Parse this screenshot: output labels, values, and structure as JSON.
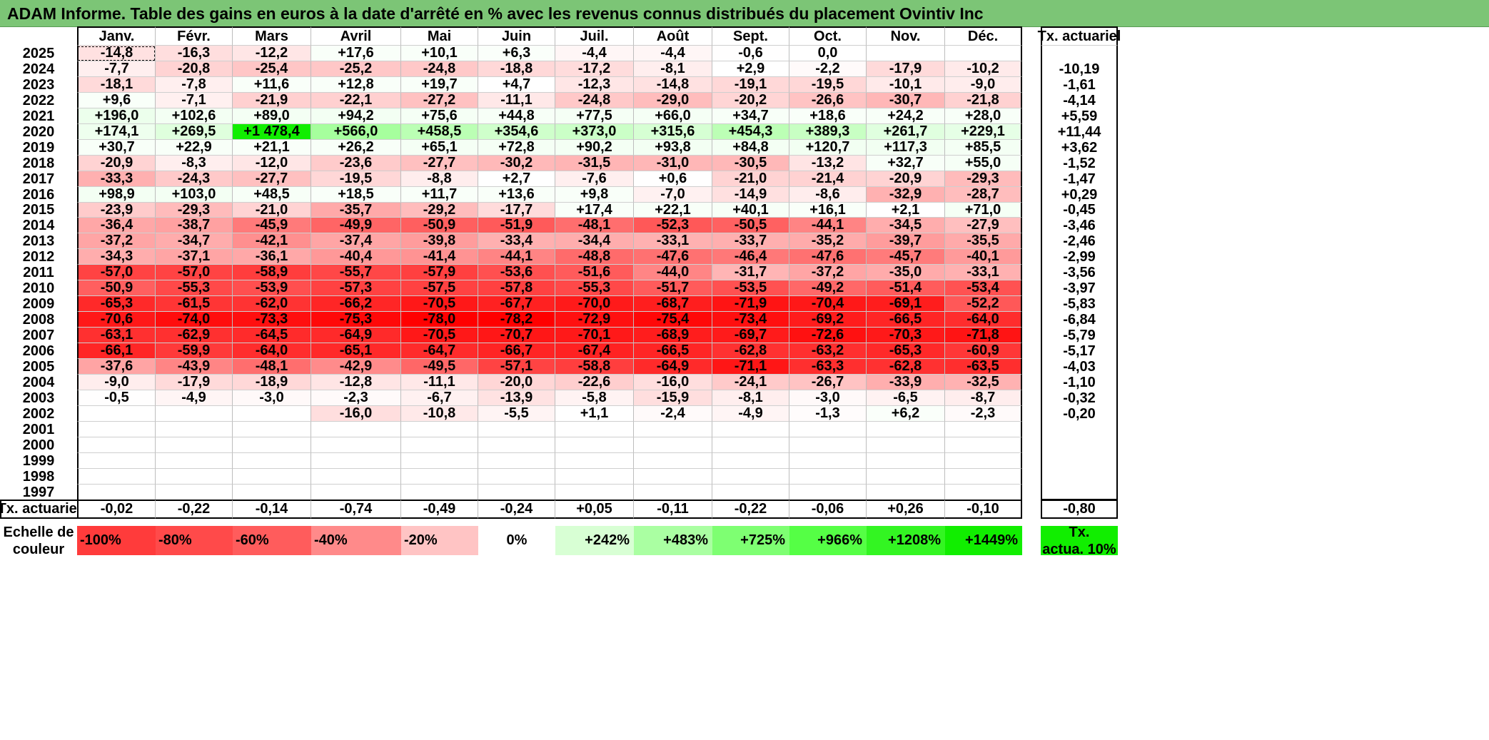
{
  "title": "ADAM Informe. Table des gains en euros à la date d'arrêté en % avec les revenus connus distribués du placement Ovintiv Inc",
  "chart_data": {
    "type": "heatmap",
    "months": [
      "Janv.",
      "Févr.",
      "Mars",
      "Avril",
      "Mai",
      "Juin",
      "Juil.",
      "Août",
      "Sept.",
      "Oct.",
      "Nov.",
      "Déc."
    ],
    "annual_rate_label": "Tx. actuariel",
    "rows": [
      {
        "year": "2025",
        "values": [
          "-14,8",
          "-16,3",
          "-12,2",
          "+17,6",
          "+10,1",
          "+6,3",
          "-4,4",
          "-4,4",
          "-0,6",
          "0,0",
          "",
          ""
        ],
        "rate": ""
      },
      {
        "year": "2024",
        "values": [
          "-7,7",
          "-20,8",
          "-25,4",
          "-25,2",
          "-24,8",
          "-18,8",
          "-17,2",
          "-8,1",
          "+2,9",
          "-2,2",
          "-17,9",
          "-10,2"
        ],
        "rate": "-10,19"
      },
      {
        "year": "2023",
        "values": [
          "-18,1",
          "-7,8",
          "+11,6",
          "+12,8",
          "+19,7",
          "+4,7",
          "-12,3",
          "-14,8",
          "-19,1",
          "-19,5",
          "-10,1",
          "-9,0"
        ],
        "rate": "-1,61"
      },
      {
        "year": "2022",
        "values": [
          "+9,6",
          "-7,1",
          "-21,9",
          "-22,1",
          "-27,2",
          "-11,1",
          "-24,8",
          "-29,0",
          "-20,2",
          "-26,6",
          "-30,7",
          "-21,8"
        ],
        "rate": "-4,14"
      },
      {
        "year": "2021",
        "values": [
          "+196,0",
          "+102,6",
          "+89,0",
          "+94,2",
          "+75,6",
          "+44,8",
          "+77,5",
          "+66,0",
          "+34,7",
          "+18,6",
          "+24,2",
          "+28,0"
        ],
        "rate": "+5,59"
      },
      {
        "year": "2020",
        "values": [
          "+174,1",
          "+269,5",
          "+1 478,4",
          "+566,0",
          "+458,5",
          "+354,6",
          "+373,0",
          "+315,6",
          "+454,3",
          "+389,3",
          "+261,7",
          "+229,1"
        ],
        "rate": "+11,44"
      },
      {
        "year": "2019",
        "values": [
          "+30,7",
          "+22,9",
          "+21,1",
          "+26,2",
          "+65,1",
          "+72,8",
          "+90,2",
          "+93,8",
          "+84,8",
          "+120,7",
          "+117,3",
          "+85,5"
        ],
        "rate": "+3,62"
      },
      {
        "year": "2018",
        "values": [
          "-20,9",
          "-8,3",
          "-12,0",
          "-23,6",
          "-27,7",
          "-30,2",
          "-31,5",
          "-31,0",
          "-30,5",
          "-13,2",
          "+32,7",
          "+55,0"
        ],
        "rate": "-1,52"
      },
      {
        "year": "2017",
        "values": [
          "-33,3",
          "-24,3",
          "-27,7",
          "-19,5",
          "-8,8",
          "+2,7",
          "-7,6",
          "+0,6",
          "-21,0",
          "-21,4",
          "-20,9",
          "-29,3"
        ],
        "rate": "-1,47"
      },
      {
        "year": "2016",
        "values": [
          "+98,9",
          "+103,0",
          "+48,5",
          "+18,5",
          "+11,7",
          "+13,6",
          "+9,8",
          "-7,0",
          "-14,9",
          "-8,6",
          "-32,9",
          "-28,7"
        ],
        "rate": "+0,29"
      },
      {
        "year": "2015",
        "values": [
          "-23,9",
          "-29,3",
          "-21,0",
          "-35,7",
          "-29,2",
          "-17,7",
          "+17,4",
          "+22,1",
          "+40,1",
          "+16,1",
          "+2,1",
          "+71,0"
        ],
        "rate": "-0,45"
      },
      {
        "year": "2014",
        "values": [
          "-36,4",
          "-38,7",
          "-45,9",
          "-49,9",
          "-50,9",
          "-51,9",
          "-48,1",
          "-52,3",
          "-50,5",
          "-44,1",
          "-34,5",
          "-27,9"
        ],
        "rate": "-3,46"
      },
      {
        "year": "2013",
        "values": [
          "-37,2",
          "-34,7",
          "-42,1",
          "-37,4",
          "-39,8",
          "-33,4",
          "-34,4",
          "-33,1",
          "-33,7",
          "-35,2",
          "-39,7",
          "-35,5"
        ],
        "rate": "-2,46"
      },
      {
        "year": "2012",
        "values": [
          "-34,3",
          "-37,1",
          "-36,1",
          "-40,4",
          "-41,4",
          "-44,1",
          "-48,8",
          "-47,6",
          "-46,4",
          "-47,6",
          "-45,7",
          "-40,1"
        ],
        "rate": "-2,99"
      },
      {
        "year": "2011",
        "values": [
          "-57,0",
          "-57,0",
          "-58,9",
          "-55,7",
          "-57,9",
          "-53,6",
          "-51,6",
          "-44,0",
          "-31,7",
          "-37,2",
          "-35,0",
          "-33,1"
        ],
        "rate": "-3,56"
      },
      {
        "year": "2010",
        "values": [
          "-50,9",
          "-55,3",
          "-53,9",
          "-57,3",
          "-57,5",
          "-57,8",
          "-55,3",
          "-51,7",
          "-53,5",
          "-49,2",
          "-51,4",
          "-53,4"
        ],
        "rate": "-3,97"
      },
      {
        "year": "2009",
        "values": [
          "-65,3",
          "-61,5",
          "-62,0",
          "-66,2",
          "-70,5",
          "-67,7",
          "-70,0",
          "-68,7",
          "-71,9",
          "-70,4",
          "-69,1",
          "-52,2"
        ],
        "rate": "-5,83"
      },
      {
        "year": "2008",
        "values": [
          "-70,6",
          "-74,0",
          "-73,3",
          "-75,3",
          "-78,0",
          "-78,2",
          "-72,9",
          "-75,4",
          "-73,4",
          "-69,2",
          "-66,5",
          "-64,0"
        ],
        "rate": "-6,84"
      },
      {
        "year": "2007",
        "values": [
          "-63,1",
          "-62,9",
          "-64,5",
          "-64,9",
          "-70,5",
          "-70,7",
          "-70,1",
          "-68,9",
          "-69,7",
          "-72,6",
          "-70,3",
          "-71,8"
        ],
        "rate": "-5,79"
      },
      {
        "year": "2006",
        "values": [
          "-66,1",
          "-59,9",
          "-64,0",
          "-65,1",
          "-64,7",
          "-66,7",
          "-67,4",
          "-66,5",
          "-62,8",
          "-63,2",
          "-65,3",
          "-60,9"
        ],
        "rate": "-5,17"
      },
      {
        "year": "2005",
        "values": [
          "-37,6",
          "-43,9",
          "-48,1",
          "-42,9",
          "-49,5",
          "-57,1",
          "-58,8",
          "-64,9",
          "-71,1",
          "-63,3",
          "-62,8",
          "-63,5"
        ],
        "rate": "-4,03"
      },
      {
        "year": "2004",
        "values": [
          "-9,0",
          "-17,9",
          "-18,9",
          "-12,8",
          "-11,1",
          "-20,0",
          "-22,6",
          "-16,0",
          "-24,1",
          "-26,7",
          "-33,9",
          "-32,5"
        ],
        "rate": "-1,10"
      },
      {
        "year": "2003",
        "values": [
          "-0,5",
          "-4,9",
          "-3,0",
          "-2,3",
          "-6,7",
          "-13,9",
          "-5,8",
          "-15,9",
          "-8,1",
          "-3,0",
          "-6,5",
          "-8,7"
        ],
        "rate": "-0,32"
      },
      {
        "year": "2002",
        "values": [
          "",
          "",
          "",
          "-16,0",
          "-10,8",
          "-5,5",
          "+1,1",
          "-2,4",
          "-4,9",
          "-1,3",
          "+6,2",
          "-2,3"
        ],
        "rate": "-0,20"
      },
      {
        "year": "2001",
        "values": [
          "",
          "",
          "",
          "",
          "",
          "",
          "",
          "",
          "",
          "",
          "",
          ""
        ],
        "rate": ""
      },
      {
        "year": "2000",
        "values": [
          "",
          "",
          "",
          "",
          "",
          "",
          "",
          "",
          "",
          "",
          "",
          ""
        ],
        "rate": ""
      },
      {
        "year": "1999",
        "values": [
          "",
          "",
          "",
          "",
          "",
          "",
          "",
          "",
          "",
          "",
          "",
          ""
        ],
        "rate": ""
      },
      {
        "year": "1998",
        "values": [
          "",
          "",
          "",
          "",
          "",
          "",
          "",
          "",
          "",
          "",
          "",
          ""
        ],
        "rate": ""
      },
      {
        "year": "1997",
        "values": [
          "",
          "",
          "",
          "",
          "",
          "",
          "",
          "",
          "",
          "",
          "",
          ""
        ],
        "rate": ""
      }
    ],
    "footer": {
      "label": "Tx. actuariel",
      "values": [
        "-0,02",
        "-0,22",
        "-0,14",
        "-0,74",
        "-0,49",
        "-0,24",
        "+0,05",
        "-0,11",
        "-0,22",
        "-0,06",
        "+0,26",
        "-0,10"
      ],
      "total": "-0,80"
    },
    "scale": {
      "label_line1": "Echelle de",
      "label_line2": "couleur",
      "steps": [
        {
          "text": "-100%",
          "color": "#ff3b3b"
        },
        {
          "text": "-80%",
          "color": "#ff4a4a"
        },
        {
          "text": "-60%",
          "color": "#ff5c5c"
        },
        {
          "text": "-40%",
          "color": "#ff8a8a"
        },
        {
          "text": "-20%",
          "color": "#ffc4c4"
        },
        {
          "text": "0%",
          "color": "#ffffff"
        },
        {
          "text": "+242%",
          "color": "#d8ffd4"
        },
        {
          "text": "+483%",
          "color": "#aaffa2"
        },
        {
          "text": "+725%",
          "color": "#7eff72"
        },
        {
          "text": "+966%",
          "color": "#55ff45"
        },
        {
          "text": "+1208%",
          "color": "#33f522"
        },
        {
          "text": "+1449%",
          "color": "#11ee00"
        }
      ],
      "end_line1": "Tx.",
      "end_line2": "actua. 10%",
      "end_color": "#11ee00"
    }
  }
}
